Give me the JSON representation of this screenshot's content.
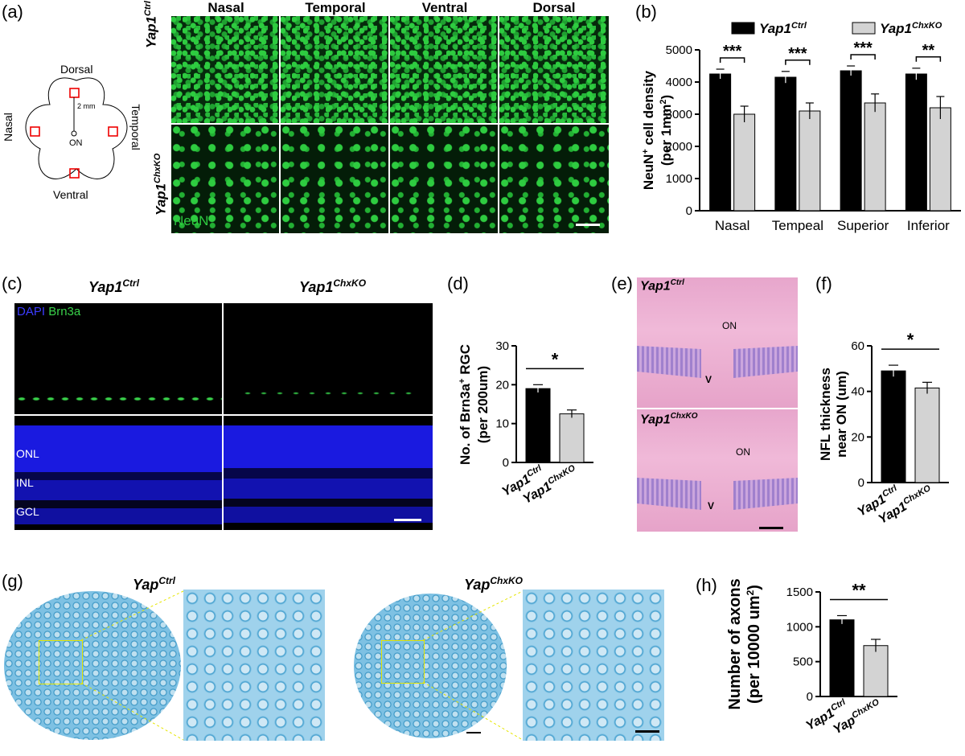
{
  "panels": {
    "a": {
      "label": "(a)",
      "schematic": {
        "dorsal": "Dorsal",
        "ventral": "Ventral",
        "nasal": "Nasal",
        "temporal": "Temporal",
        "on": "ON",
        "distance": "2 mm"
      },
      "columns": [
        "Nasal",
        "Temporal",
        "Ventral",
        "Dorsal"
      ],
      "row_ctrl_base": "Yap1",
      "row_ctrl_sup": "Ctrl",
      "row_ko_base": "Yap1",
      "row_ko_sup": "ChxKO",
      "stain": "NeuN"
    },
    "b": {
      "label": "(b)"
    },
    "c": {
      "label": "(c)",
      "ctrl_base": "Yap1",
      "ctrl_sup": "Ctrl",
      "ko_base": "Yap1",
      "ko_sup": "ChxKO",
      "stain_dapi": "DAPI",
      "stain_brn": "Brn3a",
      "layers": [
        "ONL",
        "INL",
        "GCL"
      ]
    },
    "d": {
      "label": "(d)"
    },
    "e": {
      "label": "(e)",
      "ctrl_base": "Yap1",
      "ctrl_sup": "Ctrl",
      "ko_base": "Yap1",
      "ko_sup": "ChxKO",
      "on": "ON",
      "v": "V"
    },
    "f": {
      "label": "(f)"
    },
    "g": {
      "label": "(g)",
      "ctrl_base": "Yap",
      "ctrl_sup": "Ctrl",
      "ko_base": "Yap",
      "ko_sup": "ChxKO"
    },
    "h": {
      "label": "(h)"
    }
  },
  "chart_data": [
    {
      "id": "b",
      "type": "bar",
      "categories": [
        "Nasal",
        "Tempeal",
        "Superior",
        "Inferior"
      ],
      "series": [
        {
          "name": "Yap1Ctrl",
          "name_base": "Yap1",
          "name_sup": "Ctrl",
          "values": [
            4250,
            4150,
            4350,
            4250
          ],
          "err": [
            150,
            180,
            150,
            180
          ],
          "color": "#000000"
        },
        {
          "name": "Yap1ChxKO",
          "name_base": "Yap1",
          "name_sup": "ChxKO",
          "values": [
            3000,
            3100,
            3350,
            3200
          ],
          "err": [
            250,
            250,
            280,
            350
          ],
          "color": "#d3d3d3"
        }
      ],
      "significance": [
        "***",
        "***",
        "***",
        "**"
      ],
      "ylabel_base": "NeuN",
      "ylabel_sup": "+",
      "ylabel_rest": " cell density",
      "ylabel2_pre": "(per 1mm",
      "ylabel2_sup": "2",
      "ylabel2_post": ")",
      "yticks": [
        0,
        1000,
        2000,
        3000,
        4000,
        5000
      ],
      "ylim": [
        0,
        5000
      ]
    },
    {
      "id": "d",
      "type": "bar",
      "categories": [
        {
          "base": "Yap1",
          "sup": "Ctrl"
        },
        {
          "base": "Yap1",
          "sup": "ChxKO"
        }
      ],
      "values": [
        19,
        12.5
      ],
      "err": [
        1,
        1
      ],
      "colors": [
        "#000000",
        "#d3d3d3"
      ],
      "significance": "*",
      "ylabel_pre": "No. of Brn3a",
      "ylabel_sup": "+",
      "ylabel_post": " RGC",
      "ylabel2": "(per 200um)",
      "yticks": [
        0,
        10,
        20,
        30
      ],
      "ylim": [
        0,
        30
      ]
    },
    {
      "id": "f",
      "type": "bar",
      "categories": [
        {
          "base": "Yap1",
          "sup": "Ctrl"
        },
        {
          "base": "Yap1",
          "sup": "ChxKO"
        }
      ],
      "values": [
        49,
        41.5
      ],
      "err": [
        2.5,
        2.5
      ],
      "colors": [
        "#000000",
        "#d3d3d3"
      ],
      "significance": "*",
      "ylabel": "NFL thickness",
      "ylabel2": "near ON (um)",
      "yticks": [
        0,
        20,
        40,
        60
      ],
      "ylim": [
        0,
        60
      ]
    },
    {
      "id": "h",
      "type": "bar",
      "categories": [
        {
          "base": "Yap1",
          "sup": "Ctrl"
        },
        {
          "base": "Yap",
          "sup": "ChxKO"
        }
      ],
      "values": [
        1100,
        730
      ],
      "err": [
        60,
        90
      ],
      "colors": [
        "#000000",
        "#d3d3d3"
      ],
      "significance": "**",
      "ylabel": "Number of axons",
      "ylabel2_pre": "(per 10000 um",
      "ylabel2_sup": "2",
      "ylabel2_post": ")",
      "yticks": [
        0,
        500,
        1000,
        1500
      ],
      "ylim": [
        0,
        1500
      ]
    }
  ]
}
